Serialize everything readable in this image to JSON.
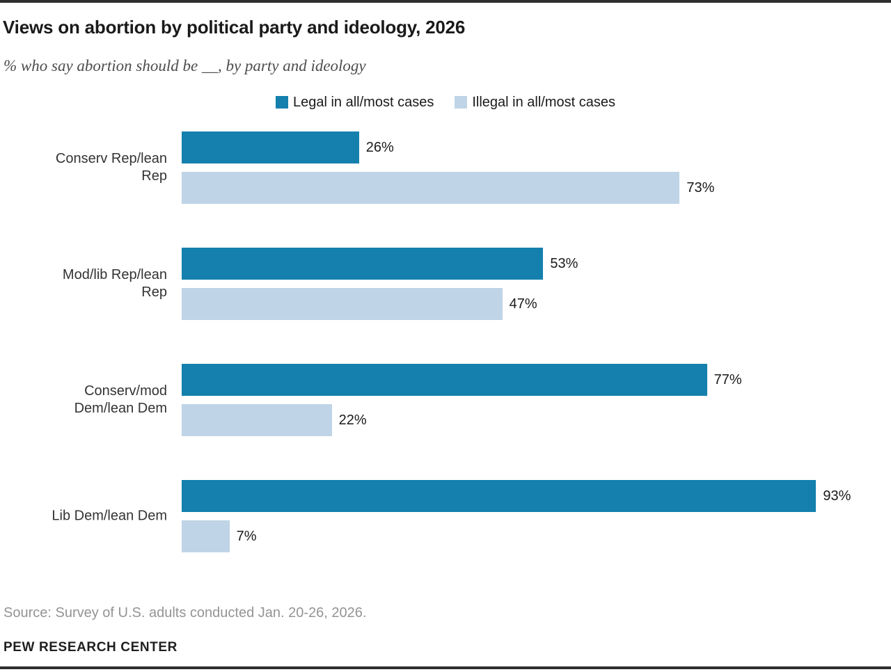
{
  "header": {
    "title": "Views on abortion by political party and ideology, 2026",
    "subtitle": "% who say abortion should be __, by party and ideology"
  },
  "chart_data": {
    "type": "bar",
    "orientation": "horizontal",
    "title": "Views on abortion by political party and ideology, 2026",
    "subtitle": "% who say abortion should be __, by party and ideology",
    "categories": [
      "Conserv Rep/lean Rep",
      "Mod/lib Rep/lean Rep",
      "Conserv/mod Dem/lean Dem",
      "Lib Dem/lean Dem"
    ],
    "category_lines": [
      [
        "Conserv Rep/lean",
        "Rep"
      ],
      [
        "Mod/lib Rep/lean",
        "Rep"
      ],
      [
        "Conserv/mod",
        "Dem/lean Dem"
      ],
      [
        "Lib Dem/lean Dem"
      ]
    ],
    "series": [
      {
        "name": "Legal in all/most cases",
        "color": "#1580ad",
        "values": [
          26,
          53,
          77,
          93
        ]
      },
      {
        "name": "Illegal in all/most cases",
        "color": "#bfd4e7",
        "values": [
          73,
          47,
          22,
          7
        ]
      }
    ],
    "value_suffix": "%",
    "xlim": [
      0,
      100
    ],
    "grid": false,
    "legend_position": "top",
    "data_labels": true
  },
  "footer": {
    "source": "Source: Survey of U.S. adults conducted Jan. 20-26, 2026.",
    "brand": "PEW RESEARCH CENTER"
  },
  "colors": {
    "legal_bar": "#1580ad",
    "illegal_bar": "#bfd4e7",
    "rule": "#2f2f2f",
    "title_text": "#1a1a1a",
    "subtitle_text": "#4d4d4d",
    "source_text": "#949494"
  }
}
